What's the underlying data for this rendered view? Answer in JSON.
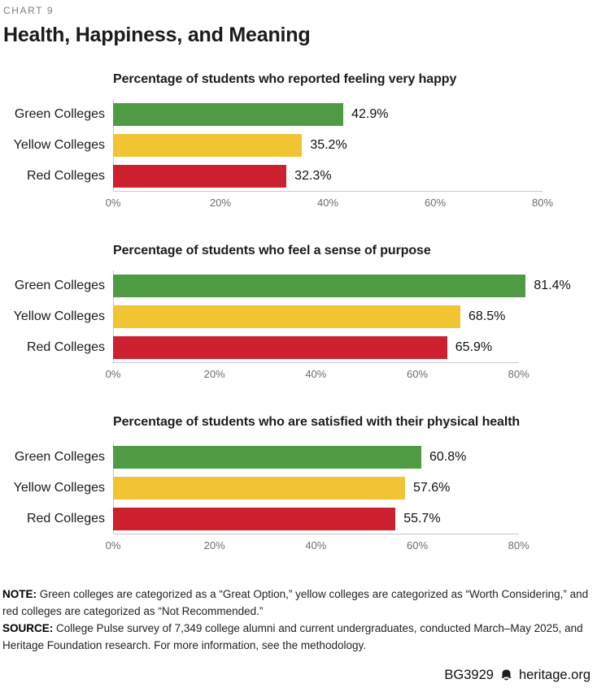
{
  "page": {
    "kicker": "CHART 9",
    "title": "Health, Happiness, and Meaning"
  },
  "colors": {
    "green_bar": "#4f9b44",
    "yellow_bar": "#f0c433",
    "red_bar": "#cd2130",
    "axis_line": "#c9c9c9",
    "tick_text": "#6e6e6e",
    "kicker_text": "#7d7d7d"
  },
  "chart_data": [
    {
      "type": "bar",
      "orientation": "horizontal",
      "title": "Percentage of students who reported feeling very happy",
      "categories": [
        "Green Colleges",
        "Yellow Colleges",
        "Red Colleges"
      ],
      "values": [
        42.9,
        35.2,
        32.3
      ],
      "value_labels": [
        "42.9%",
        "35.2%",
        "32.3%"
      ],
      "bar_color_keys": [
        "green_bar",
        "yellow_bar",
        "red_bar"
      ],
      "xticks": [
        0,
        20,
        40,
        60,
        80
      ],
      "xtick_labels": [
        "0%",
        "20%",
        "40%",
        "60%",
        "80%"
      ],
      "xlim": [
        0,
        85
      ],
      "grid": false,
      "legend": "none"
    },
    {
      "type": "bar",
      "orientation": "horizontal",
      "title": "Percentage of students who feel a sense of purpose",
      "categories": [
        "Green Colleges",
        "Yellow Colleges",
        "Red Colleges"
      ],
      "values": [
        81.4,
        68.5,
        65.9
      ],
      "value_labels": [
        "81.4%",
        "68.5%",
        "65.9%"
      ],
      "bar_color_keys": [
        "green_bar",
        "yellow_bar",
        "red_bar"
      ],
      "xticks": [
        0,
        20,
        40,
        60,
        80
      ],
      "xtick_labels": [
        "0%",
        "20%",
        "40%",
        "60%",
        "80%"
      ],
      "xlim": [
        0,
        90
      ],
      "grid": false,
      "legend": "none"
    },
    {
      "type": "bar",
      "orientation": "horizontal",
      "title": "Percentage of students who are satisfied with their physical health",
      "categories": [
        "Green Colleges",
        "Yellow Colleges",
        "Red Colleges"
      ],
      "values": [
        60.8,
        57.6,
        55.7
      ],
      "value_labels": [
        "60.8%",
        "57.6%",
        "55.7%"
      ],
      "bar_color_keys": [
        "green_bar",
        "yellow_bar",
        "red_bar"
      ],
      "xticks": [
        0,
        20,
        40,
        60,
        80
      ],
      "xtick_labels": [
        "0%",
        "20%",
        "40%",
        "60%",
        "80%"
      ],
      "xlim": [
        0,
        90
      ],
      "grid": false,
      "legend": "none"
    }
  ],
  "footnotes": [
    {
      "label": "NOTE:",
      "text": "Green colleges are categorized as a “Great Option,” yellow colleges are categorized as “Worth Considering,” and red colleges are categorized as “Not Recommended.”"
    },
    {
      "label": "SOURCE:",
      "text": "College Pulse survey of 7,349 college alumni and current undergraduates, conducted March–May 2025, and Heritage Foundation research. For more information, see the methodology."
    }
  ],
  "credit": {
    "report_id": "BG3929",
    "logo_icon": "liberty-bell-icon",
    "site": "heritage.org"
  }
}
